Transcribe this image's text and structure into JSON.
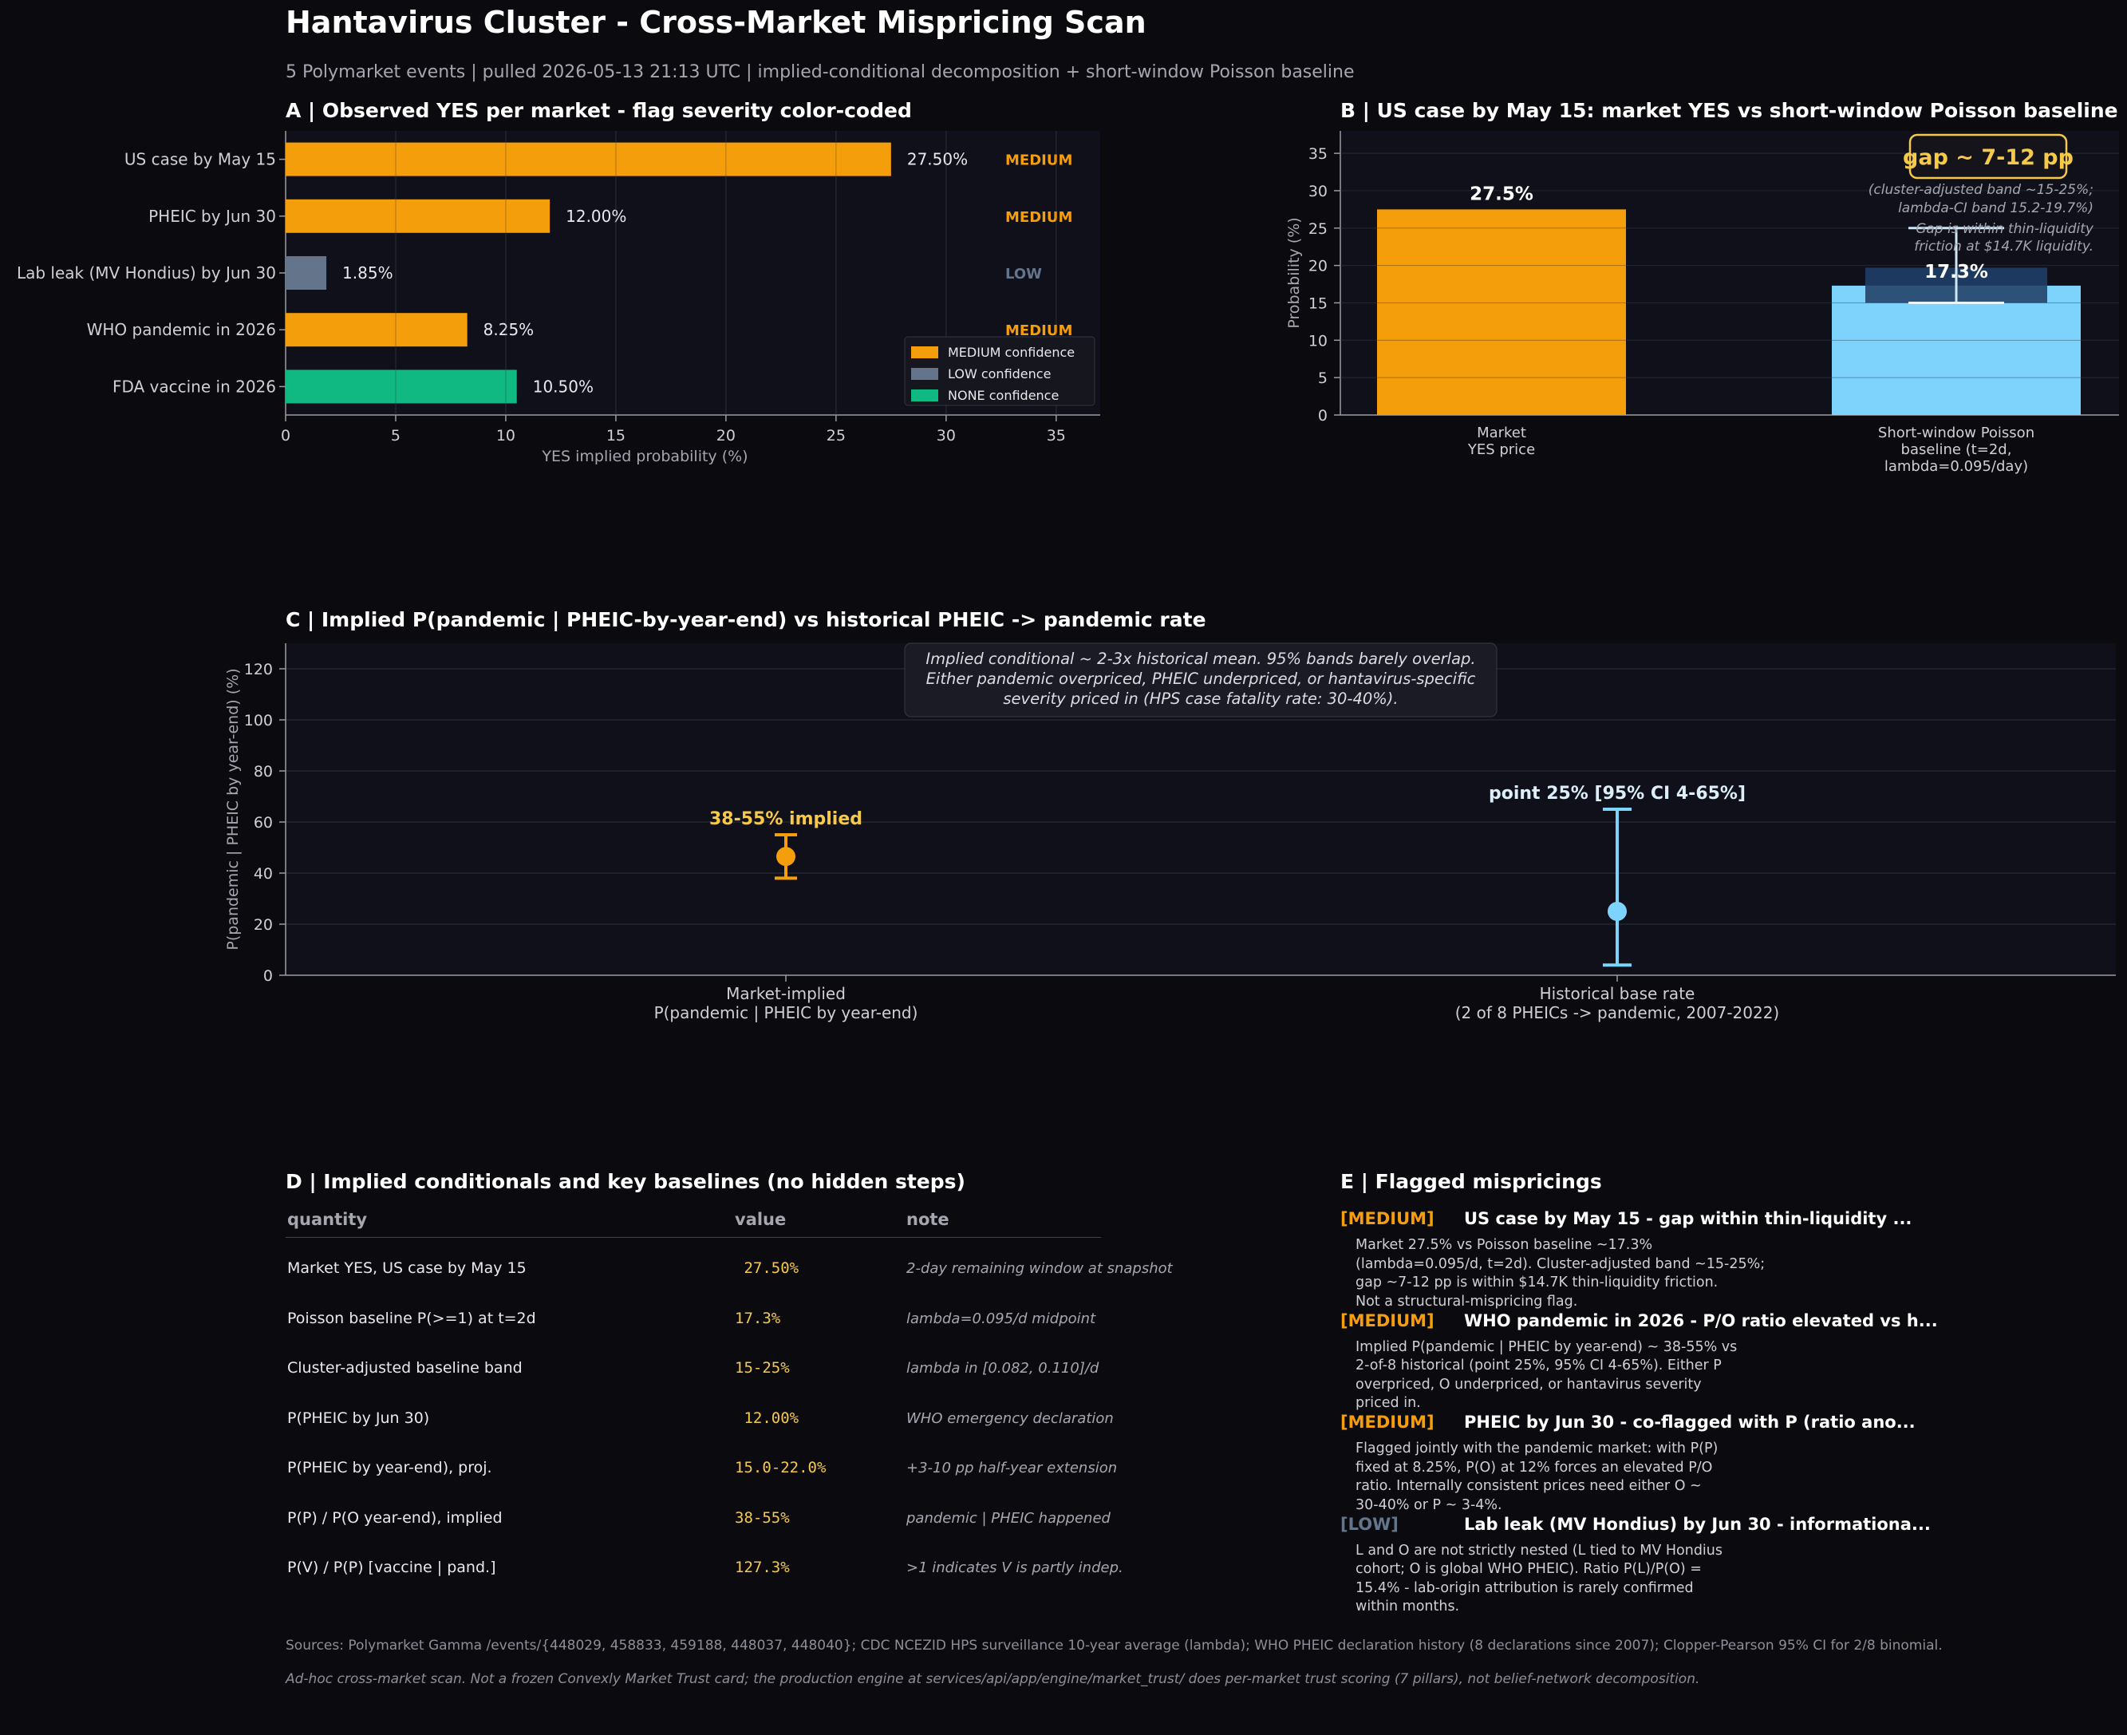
{
  "header": {
    "title": "Hantavirus Cluster - Cross-Market Mispricing Scan",
    "subtitle": "5 Polymarket events | pulled 2026-05-13 21:13 UTC | implied-conditional decomposition + short-window Poisson baseline"
  },
  "colors": {
    "medium": "#f59e0b",
    "low": "#64748b",
    "none": "#10b981",
    "poisson": "#7dd3fc",
    "gold": "#f7c948",
    "panel_bg": "#0f1019"
  },
  "chart_data": [
    {
      "id": "A",
      "type": "bar",
      "orientation": "horizontal",
      "title": "A | Observed YES per market - flag severity color-coded",
      "xlabel": "YES implied probability (%)",
      "xlim": [
        0,
        37
      ],
      "xticks": [
        0,
        5,
        10,
        15,
        20,
        25,
        30,
        35
      ],
      "categories": [
        "US case by May 15",
        "PHEIC by Jun 30",
        "Lab leak (MV Hondius) by Jun 30",
        "WHO pandemic in 2026",
        "FDA vaccine in 2026"
      ],
      "values": [
        27.5,
        12.0,
        1.85,
        8.25,
        10.5
      ],
      "value_labels": [
        "27.50%",
        "12.00%",
        "1.85%",
        "8.25%",
        "10.50%"
      ],
      "severity": [
        "MEDIUM",
        "MEDIUM",
        "LOW",
        "MEDIUM",
        "NONE"
      ],
      "legend": [
        {
          "label": "MEDIUM confidence",
          "key": "medium"
        },
        {
          "label": "LOW confidence",
          "key": "low"
        },
        {
          "label": "NONE confidence",
          "key": "none"
        }
      ],
      "legend_position": "bottom-right",
      "grid": true
    },
    {
      "id": "B",
      "type": "bar",
      "title": "B | US case by May 15: market YES vs short-window Poisson baseline",
      "ylabel": "Probability (%)",
      "ylim": [
        0,
        38
      ],
      "yticks": [
        0,
        5,
        10,
        15,
        20,
        25,
        30,
        35
      ],
      "categories": [
        "Market\nYES price",
        "Short-window Poisson\nbaseline (t=2d,\nlambda=0.095/day)"
      ],
      "values": [
        27.5,
        17.3
      ],
      "value_labels": [
        "27.5%",
        "17.3%"
      ],
      "band": [
        15,
        19.7
      ],
      "error_range": [
        15,
        25
      ],
      "gap_label": "gap ~ 7-12 pp",
      "notes": [
        "(cluster-adjusted band ~15-25%;",
        "lambda-CI band 15.2-19.7%)",
        "Gap is within thin-liquidity",
        "friction at $14.7K liquidity."
      ],
      "grid": true
    },
    {
      "id": "C",
      "type": "scatter",
      "title": "C | Implied P(pandemic | PHEIC-by-year-end) vs historical PHEIC -> pandemic rate",
      "ylabel": "P(pandemic | PHEIC by year-end)  (%)",
      "ylim": [
        0,
        130
      ],
      "yticks": [
        0,
        20,
        40,
        60,
        80,
        100,
        120
      ],
      "categories": [
        "Market-implied\nP(pandemic | PHEIC by year-end)",
        "Historical base rate\n(2 of 8 PHEICs -> pandemic, 2007-2022)"
      ],
      "points": [
        {
          "y": 46.5,
          "low": 38,
          "high": 55,
          "label": "38-55% implied"
        },
        {
          "y": 25,
          "low": 4,
          "high": 65,
          "label": "point 25%  [95% CI 4-65%]"
        }
      ],
      "annotation": [
        "Implied conditional ~ 2-3x historical mean. 95% bands barely overlap.",
        "Either pandemic overpriced, PHEIC underpriced, or hantavirus-specific",
        "severity priced in (HPS case fatality rate: 30-40%)."
      ],
      "grid": true
    }
  ],
  "tableD": {
    "title": "D | Implied conditionals and key baselines (no hidden steps)",
    "headers": {
      "quantity": "quantity",
      "value": "value",
      "note": "note"
    },
    "rows": [
      {
        "q": "Market YES, US case by May 15",
        "v": " 27.50%",
        "n": "2-day remaining window at snapshot"
      },
      {
        "q": "Poisson baseline P(>=1) at t=2d",
        "v": "17.3%",
        "n": "lambda=0.095/d midpoint"
      },
      {
        "q": "Cluster-adjusted baseline band",
        "v": "15-25%",
        "n": "lambda in [0.082, 0.110]/d"
      },
      {
        "q": "P(PHEIC by Jun 30)",
        "v": " 12.00%",
        "n": "WHO emergency declaration"
      },
      {
        "q": "P(PHEIC by year-end), proj.",
        "v": "15.0-22.0%",
        "n": "+3-10 pp half-year extension"
      },
      {
        "q": "P(P) / P(O year-end), implied",
        "v": "38-55%",
        "n": "pandemic | PHEIC happened"
      },
      {
        "q": "P(V) / P(P)  [vaccine | pand.]",
        "v": "127.3%",
        "n": ">1 indicates V is partly indep."
      }
    ]
  },
  "flagsE": {
    "title": "E | Flagged mispricings",
    "items": [
      {
        "tag": "[MEDIUM]",
        "level": "medium",
        "title": "US case by May 15 - gap within thin-liquidity ...",
        "body": "Market 27.5% vs Poisson baseline ~17.3%\n(lambda=0.095/d, t=2d). Cluster-adjusted band ~15-25%;\ngap ~7-12 pp is within $14.7K thin-liquidity friction.\nNot a structural-mispricing flag."
      },
      {
        "tag": "[MEDIUM]",
        "level": "medium",
        "title": "WHO pandemic in 2026 - P/O ratio elevated vs h...",
        "body": "Implied P(pandemic | PHEIC by year-end) ~ 38-55% vs\n2-of-8 historical (point 25%, 95% CI 4-65%). Either P\noverpriced, O underpriced, or hantavirus severity\npriced in."
      },
      {
        "tag": "[MEDIUM]",
        "level": "medium",
        "title": "PHEIC by Jun 30 - co-flagged with P (ratio ano...",
        "body": "Flagged jointly with the pandemic market: with P(P)\nfixed at 8.25%, P(O) at 12% forces an elevated P/O\nratio. Internally consistent prices need either O ~\n30-40% or P ~ 3-4%."
      },
      {
        "tag": "[LOW]",
        "level": "low",
        "title": "Lab leak (MV Hondius) by Jun 30 - informationa...",
        "body": "L and O are not strictly nested (L tied to MV Hondius\ncohort; O is global WHO PHEIC). Ratio P(L)/P(O) =\n15.4% - lab-origin attribution is rarely confirmed\nwithin months."
      }
    ]
  },
  "footer": {
    "sources": "Sources: Polymarket Gamma /events/{448029, 458833, 459188, 448037, 448040}; CDC NCEZID HPS surveillance 10-year average (lambda); WHO PHEIC declaration history (8 declarations since 2007); Clopper-Pearson 95% CI for 2/8 binomial.",
    "disclaimer": "Ad-hoc cross-market scan. Not a frozen Convexly Market Trust card; the production engine at services/api/app/engine/market_trust/ does per-market trust scoring (7 pillars), not belief-network decomposition."
  }
}
